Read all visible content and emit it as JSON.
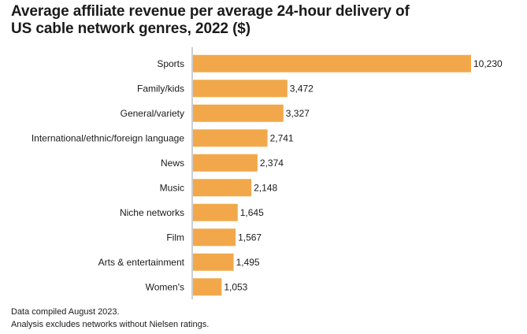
{
  "chart_data": {
    "type": "bar",
    "orientation": "horizontal",
    "title_lines": [
      "Average affiliate revenue per average 24-hour delivery of",
      "US cable network genres, 2022 ($)"
    ],
    "categories": [
      "Sports",
      "Family/kids",
      "General/variety",
      "International/ethnic/foreign language",
      "News",
      "Music",
      "Niche networks",
      "Film",
      "Arts & entertainment",
      "Women's"
    ],
    "values": [
      10230,
      3472,
      3327,
      2741,
      2374,
      2148,
      1645,
      1567,
      1495,
      1053
    ],
    "value_labels": [
      "10,230",
      "3,472",
      "3,327",
      "2,741",
      "2,374",
      "2,148",
      "1,645",
      "1,567",
      "1,495",
      "1,053"
    ],
    "bar_color": "#f2a84a",
    "axis_color": "#9e9e9e",
    "xlim": [
      0,
      10230
    ],
    "grid": false,
    "legend": "none"
  },
  "notes": [
    "Data compiled August 2023.",
    "Analysis excludes networks without Nielsen ratings."
  ]
}
